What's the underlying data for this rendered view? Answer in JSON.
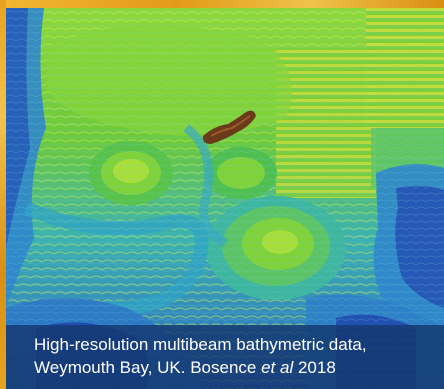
{
  "caption": {
    "line1": "High-resolution multibeam bathymetric data,",
    "line2_prefix": "Weymouth Bay, UK. Bosence ",
    "line2_italic": "et al",
    "line2_suffix": " 2018"
  },
  "colors": {
    "frame": "#e8a31e",
    "caption_background": "#14376e",
    "caption_text": "#ffffff",
    "deep": "#1a3fa6",
    "mid": "#2fb0c8",
    "shallow": "#7fd23a",
    "high": "#d4e23a",
    "outcrop": "#6b3a1a"
  }
}
